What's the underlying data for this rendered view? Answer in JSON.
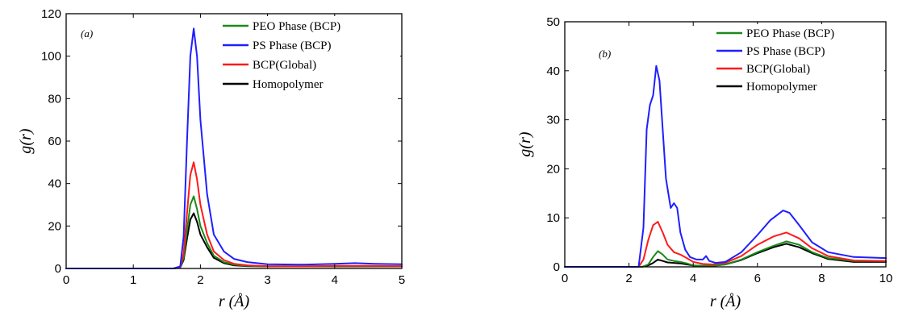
{
  "chart_data": [
    {
      "type": "line",
      "panel_label": "(a)",
      "xlabel": "r (Å)",
      "ylabel": "g(r)",
      "xlim": [
        0,
        5
      ],
      "ylim": [
        0,
        120
      ],
      "xticks": [
        "0",
        "1",
        "2",
        "3",
        "4",
        "5"
      ],
      "yticks": [
        "0",
        "20",
        "40",
        "60",
        "80",
        "100",
        "120"
      ],
      "legend_position": "top-right",
      "grid": false,
      "series": [
        {
          "name": "PEO Phase (BCP)",
          "color": "#1a8a1a",
          "x": [
            0,
            1.6,
            1.7,
            1.75,
            1.8,
            1.85,
            1.9,
            1.95,
            2.0,
            2.1,
            2.2,
            2.35,
            2.5,
            2.7,
            3.0,
            3.5,
            4.0,
            4.5,
            5.0
          ],
          "y": [
            0,
            0,
            0.5,
            5,
            18,
            30,
            34,
            28,
            20,
            12,
            6,
            3,
            1.8,
            1.2,
            1.0,
            1.0,
            1.1,
            1.1,
            1.0
          ]
        },
        {
          "name": "PS Phase (BCP)",
          "color": "#1f1fff",
          "x": [
            0,
            1.6,
            1.7,
            1.75,
            1.8,
            1.85,
            1.9,
            1.95,
            2.0,
            2.1,
            2.2,
            2.35,
            2.5,
            2.7,
            3.0,
            3.5,
            4.0,
            4.3,
            4.6,
            5.0
          ],
          "y": [
            0,
            0,
            1,
            15,
            60,
            100,
            113,
            100,
            70,
            35,
            16,
            8,
            4.5,
            3,
            2,
            1.8,
            2.2,
            2.5,
            2.2,
            2.0
          ]
        },
        {
          "name": "BCP(Global)",
          "color": "#ff1a1a",
          "x": [
            0,
            1.6,
            1.7,
            1.75,
            1.8,
            1.85,
            1.9,
            1.95,
            2.0,
            2.1,
            2.2,
            2.35,
            2.5,
            2.7,
            3.0,
            3.5,
            4.0,
            4.5,
            5.0
          ],
          "y": [
            0,
            0,
            0.6,
            7,
            26,
            44,
            50,
            42,
            30,
            16,
            8,
            4,
            2.2,
            1.5,
            1.1,
            1.0,
            1.2,
            1.2,
            1.1
          ]
        },
        {
          "name": "Homopolymer",
          "color": "#000000",
          "x": [
            0,
            1.6,
            1.7,
            1.75,
            1.8,
            1.85,
            1.9,
            1.95,
            2.0,
            2.1,
            2.2,
            2.35,
            2.5,
            2.7,
            3.0,
            3.5,
            4.0,
            4.5,
            5.0
          ],
          "y": [
            0,
            0,
            0.4,
            4,
            14,
            23,
            26,
            22,
            16,
            10,
            5,
            2.5,
            1.5,
            1.1,
            1.0,
            1.0,
            1.0,
            1.0,
            1.0
          ]
        }
      ]
    },
    {
      "type": "line",
      "panel_label": "(b)",
      "xlabel": "r (Å)",
      "ylabel": "g(r)",
      "xlim": [
        0,
        10
      ],
      "ylim": [
        0,
        50
      ],
      "xticks": [
        "0",
        "2",
        "4",
        "6",
        "8",
        "10"
      ],
      "yticks": [
        "0",
        "10",
        "20",
        "30",
        "40",
        "50"
      ],
      "legend_position": "top-right",
      "grid": false,
      "series": [
        {
          "name": "PEO Phase (BCP)",
          "color": "#1a8a1a",
          "x": [
            0,
            2.4,
            2.6,
            2.75,
            2.9,
            3.05,
            3.2,
            3.4,
            3.6,
            3.8,
            4.0,
            4.3,
            4.6,
            5.0,
            5.5,
            6.0,
            6.5,
            6.9,
            7.3,
            7.7,
            8.2,
            9.0,
            10.0
          ],
          "y": [
            0,
            0,
            0.5,
            2.0,
            3.2,
            2.5,
            1.5,
            1.2,
            1.0,
            0.7,
            0.3,
            0.2,
            0.2,
            0.5,
            1.5,
            3.0,
            4.3,
            5.2,
            4.5,
            3.0,
            1.8,
            1.2,
            1.2
          ]
        },
        {
          "name": "PS Phase (BCP)",
          "color": "#1f1fff",
          "x": [
            0,
            2.3,
            2.45,
            2.55,
            2.65,
            2.75,
            2.85,
            2.95,
            3.05,
            3.15,
            3.3,
            3.4,
            3.5,
            3.6,
            3.75,
            3.9,
            4.1,
            4.3,
            4.4,
            4.5,
            4.7,
            5.0,
            5.5,
            6.0,
            6.4,
            6.8,
            7.0,
            7.3,
            7.7,
            8.2,
            9.0,
            10.0
          ],
          "y": [
            0,
            0,
            8,
            28,
            33,
            35,
            41,
            38,
            28,
            18,
            12,
            13,
            12,
            7,
            3.5,
            2,
            1.5,
            1.5,
            2.2,
            1.2,
            0.8,
            1.0,
            3.0,
            6.5,
            9.5,
            11.5,
            11.0,
            8.5,
            5.0,
            3.0,
            2.0,
            1.8
          ]
        },
        {
          "name": "BCP(Global)",
          "color": "#ff1a1a",
          "x": [
            0,
            2.3,
            2.45,
            2.6,
            2.75,
            2.9,
            3.05,
            3.2,
            3.4,
            3.6,
            3.8,
            4.0,
            4.3,
            4.6,
            5.0,
            5.5,
            6.0,
            6.5,
            6.9,
            7.3,
            7.7,
            8.2,
            9.0,
            10.0
          ],
          "y": [
            0,
            0,
            1.5,
            5.5,
            8.5,
            9.2,
            7.0,
            4.5,
            3.0,
            2.5,
            1.8,
            1.0,
            0.6,
            0.5,
            0.8,
            2.2,
            4.5,
            6.2,
            7.0,
            5.8,
            3.8,
            2.2,
            1.3,
            1.2
          ]
        },
        {
          "name": "Homopolymer",
          "color": "#000000",
          "x": [
            0,
            2.4,
            2.6,
            2.75,
            2.9,
            3.05,
            3.2,
            3.4,
            3.6,
            3.8,
            4.0,
            4.3,
            4.6,
            5.0,
            5.5,
            6.0,
            6.5,
            6.9,
            7.3,
            7.7,
            8.2,
            9.0,
            10.0
          ],
          "y": [
            0,
            0,
            0.3,
            0.8,
            1.5,
            1.2,
            0.9,
            0.8,
            0.7,
            0.5,
            0.3,
            0.2,
            0.2,
            0.5,
            1.4,
            2.8,
            4.0,
            4.7,
            4.0,
            2.8,
            1.6,
            1.0,
            1.0
          ]
        }
      ]
    }
  ]
}
